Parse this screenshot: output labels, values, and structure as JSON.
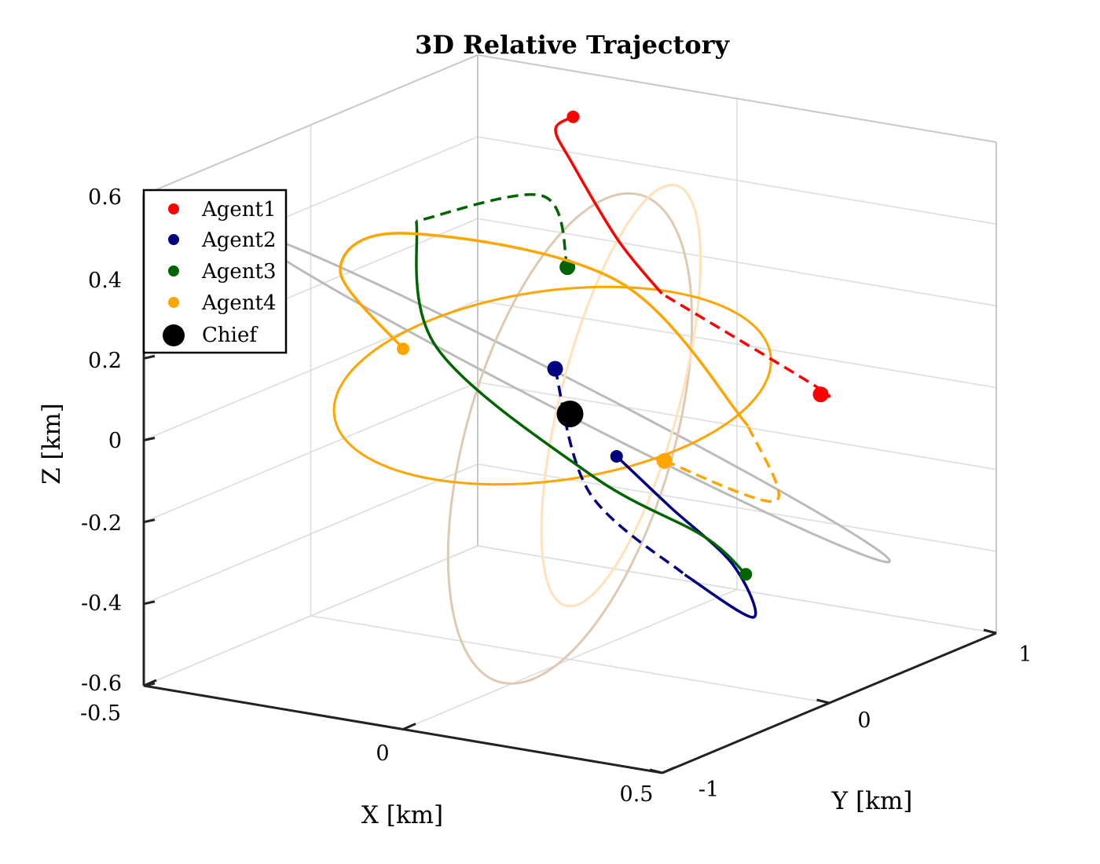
{
  "chart_data": {
    "type": "line3d",
    "title": "3D Relative Trajectory",
    "xlabel": "X [km]",
    "ylabel": "Y [km]",
    "zlabel": "Z [km]",
    "xlim": [
      -0.5,
      0.5
    ],
    "ylim": [
      -1,
      1
    ],
    "zlim": [
      -0.6,
      0.6
    ],
    "grid": true,
    "legend_position": "top-left",
    "x_ticks": [
      {
        "value": -0.5,
        "label": "-0.5"
      },
      {
        "value": 0,
        "label": "0"
      },
      {
        "value": 0.5,
        "label": "0.5"
      }
    ],
    "y_ticks": [
      {
        "value": -1,
        "label": "-1"
      },
      {
        "value": 0,
        "label": "0"
      },
      {
        "value": 1,
        "label": "1"
      }
    ],
    "z_ticks": [
      {
        "value": -0.6,
        "label": "-0.6"
      },
      {
        "value": -0.4,
        "label": "-0.4"
      },
      {
        "value": -0.2,
        "label": "-0.2"
      },
      {
        "value": 0,
        "label": "0"
      },
      {
        "value": 0.2,
        "label": "0.2"
      },
      {
        "value": 0.4,
        "label": "0.4"
      },
      {
        "value": 0.6,
        "label": "0.6"
      }
    ],
    "legend": [
      {
        "label": "Agent1",
        "color": "#ff0000",
        "marker": "small-dot"
      },
      {
        "label": "Agent2",
        "color": "#000080",
        "marker": "small-dot"
      },
      {
        "label": "Agent3",
        "color": "#006400",
        "marker": "small-dot"
      },
      {
        "label": "Agent4",
        "color": "#ffa500",
        "marker": "small-dot"
      },
      {
        "label": "Chief",
        "color": "#000000",
        "marker": "large-dot"
      }
    ],
    "chief": {
      "x": 0,
      "y": 0,
      "z": 0,
      "color": "#000000"
    },
    "reference_orbits": [
      {
        "name": "gray-orbit",
        "color": "#bbbbbb",
        "center": [
          0,
          0,
          0.04
        ],
        "u": [
          0.5,
          -0.55,
          0.03
        ],
        "v": [
          -0.3,
          -0.7,
          0.42
        ]
      },
      {
        "name": "tan-orbit",
        "color": "#dfc9b3",
        "center": [
          0,
          0,
          -0.06
        ],
        "u": [
          0.05,
          0.3,
          0.55
        ],
        "v": [
          -0.2,
          0.05,
          0.05
        ]
      },
      {
        "name": "light-orange-orbit",
        "color": "#ffe1bb",
        "center": [
          0.05,
          0.15,
          0.03
        ],
        "u": [
          0.05,
          0.15,
          0.5
        ],
        "v": [
          -0.15,
          0.1,
          -0.05
        ]
      },
      {
        "name": "agent4-orbit",
        "color": "#ffa500",
        "center": [
          -0.05,
          0.05,
          0.05
        ],
        "u": [
          -0.1,
          -0.7,
          0.2
        ],
        "v": [
          -0.3,
          0.1,
          -0.3
        ]
      }
    ],
    "series": [
      {
        "name": "Agent1",
        "color": "#ff0000",
        "start": [
          0.2,
          0.88,
          -0.06
        ],
        "end": [
          -0.3,
          0.95,
          0.5
        ],
        "via": [
          [
            0.25,
            0.7,
            0.0
          ],
          [
            0.0,
            0.55,
            0.2
          ],
          [
            -0.1,
            0.6,
            0.3
          ],
          [
            -0.35,
            1.1,
            0.35
          ],
          [
            -0.35,
            1.0,
            0.45
          ]
        ]
      },
      {
        "name": "Agent2",
        "color": "#000080",
        "start": [
          0.1,
          -0.4,
          0.2
        ],
        "end": [
          -0.2,
          0.9,
          -0.3
        ],
        "via": [
          [
            0.15,
            -0.35,
            -0.1
          ],
          [
            0.35,
            -0.4,
            -0.25
          ],
          [
            0.45,
            -0.3,
            -0.35
          ],
          [
            0.25,
            0.2,
            -0.35
          ],
          [
            0.0,
            0.6,
            -0.33
          ]
        ]
      },
      {
        "name": "Agent3",
        "color": "#006400",
        "start": [
          -0.15,
          0.45,
          0.25
        ],
        "end": [
          0.5,
          -0.5,
          -0.2
        ],
        "via": [
          [
            -0.15,
            0.3,
            0.45
          ],
          [
            -0.2,
            -0.3,
            0.48
          ],
          [
            0.0,
            -0.8,
            0.3
          ],
          [
            0.3,
            -0.8,
            0.05
          ],
          [
            0.45,
            -0.6,
            -0.1
          ]
        ]
      },
      {
        "name": "Agent4",
        "color": "#ffa500",
        "start": [
          0.15,
          0.1,
          -0.1
        ],
        "end": [
          0.0,
          -1.0,
          0.33
        ],
        "via": [
          [
            0.3,
            0.3,
            -0.2
          ],
          [
            0.15,
            0.6,
            -0.1
          ],
          [
            -0.1,
            0.6,
            0.2
          ],
          [
            -0.35,
            0.1,
            0.35
          ],
          [
            -0.25,
            -0.6,
            0.4
          ]
        ]
      }
    ]
  }
}
